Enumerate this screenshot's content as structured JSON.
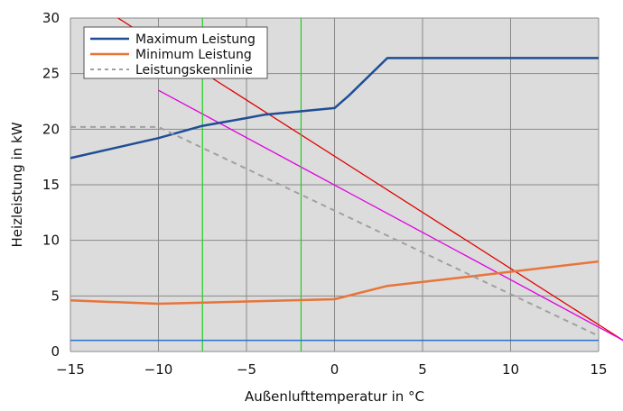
{
  "chart_data": {
    "type": "line",
    "title": "",
    "xlabel": "Außenlufttemperatur in °C",
    "ylabel": "Heizleistung in kW",
    "xlim": [
      -15,
      15
    ],
    "ylim": [
      0,
      30
    ],
    "xticks": [
      -15,
      -10,
      -5,
      0,
      5,
      10,
      15
    ],
    "xtick_labels": [
      "−15",
      "−10",
      "−5",
      "0",
      "5",
      "10",
      "15"
    ],
    "yticks": [
      0,
      5,
      10,
      15,
      20,
      25,
      30
    ],
    "ytick_labels": [
      "0",
      "5",
      "10",
      "15",
      "20",
      "25",
      "30"
    ],
    "grid": true,
    "plot_background": "#dcdcdc",
    "legend_position": "top-left",
    "series": [
      {
        "name": "Maximum Leistung",
        "color": "#1f4e96",
        "style": "solid",
        "points": [
          [
            -15,
            17.4
          ],
          [
            -10,
            19.2
          ],
          [
            -7.5,
            20.3
          ],
          [
            -5,
            21.0
          ],
          [
            -4,
            21.3
          ],
          [
            -2,
            21.6
          ],
          [
            0,
            21.9
          ],
          [
            0.8,
            23.0
          ],
          [
            3,
            26.4
          ],
          [
            15,
            26.4
          ]
        ]
      },
      {
        "name": "Minimum Leistung",
        "color": "#e8743a",
        "style": "solid",
        "points": [
          [
            -15,
            4.6
          ],
          [
            -10,
            4.3
          ],
          [
            -5,
            4.5
          ],
          [
            0,
            4.7
          ],
          [
            3,
            5.9
          ],
          [
            8,
            6.8
          ],
          [
            15,
            8.1
          ]
        ]
      },
      {
        "name": "Leistungskennlinie",
        "color": "#a0a0a0",
        "style": "dashed",
        "points": [
          [
            -15,
            20.2
          ],
          [
            -10,
            20.2
          ],
          [
            15,
            1.4
          ]
        ]
      }
    ],
    "overlays": [
      {
        "kind": "line",
        "color": "#e00000",
        "points": [
          [
            -12.3,
            30
          ],
          [
            16.4,
            1.0
          ]
        ]
      },
      {
        "kind": "line",
        "color": "#e000e0",
        "points": [
          [
            -10,
            23.5
          ],
          [
            16.4,
            1.0
          ]
        ]
      },
      {
        "kind": "vline",
        "color": "#22cc22",
        "x": -7.5
      },
      {
        "kind": "vline",
        "color": "#22cc22",
        "x": -1.9
      },
      {
        "kind": "hline",
        "color": "#2a72d0",
        "y": 1.0
      }
    ]
  }
}
